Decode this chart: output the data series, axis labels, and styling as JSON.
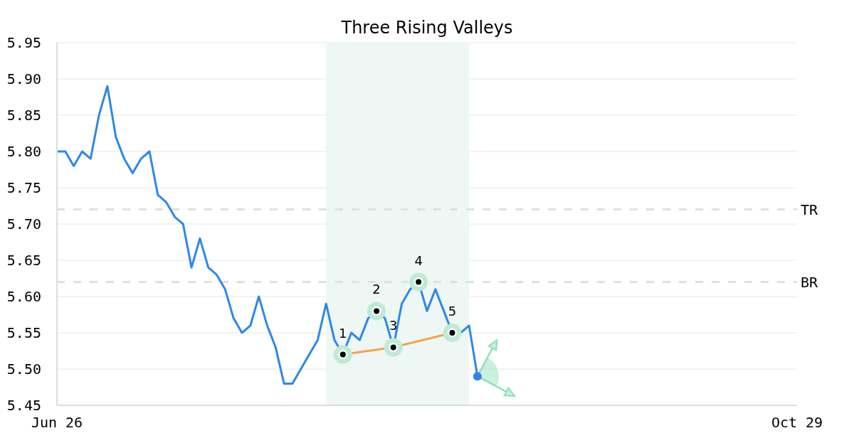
{
  "chart_data": {
    "type": "line",
    "title": "Three Rising Valleys",
    "categories": [
      "Jun 26",
      null,
      null,
      null,
      null,
      null,
      null,
      null,
      null,
      null,
      null,
      null,
      null,
      null,
      null,
      null,
      null,
      null,
      null,
      null,
      null,
      null,
      null,
      null,
      null,
      null,
      null,
      null,
      null,
      null,
      null,
      null,
      null,
      null,
      null,
      null,
      null,
      null,
      null,
      null,
      null,
      null,
      null,
      null,
      null,
      null,
      null,
      null,
      null,
      null,
      null,
      null,
      null,
      null,
      null,
      null,
      null,
      null,
      null,
      null,
      null,
      null,
      null,
      null,
      null,
      null,
      null,
      null,
      null,
      null,
      null,
      null,
      null,
      null,
      null,
      null,
      null,
      null,
      null,
      null,
      null,
      null,
      null,
      null,
      null,
      null,
      null,
      null,
      "Oct 29"
    ],
    "series": [
      {
        "color": "#2d87e8",
        "values": [
          5.8,
          5.8,
          5.78,
          5.8,
          5.79,
          5.85,
          5.89,
          5.82,
          5.79,
          5.77,
          5.79,
          5.8,
          5.74,
          5.73,
          5.71,
          5.7,
          5.64,
          5.68,
          5.64,
          5.63,
          5.61,
          5.57,
          5.55,
          5.56,
          5.6,
          5.56,
          5.53,
          5.48,
          5.48,
          5.5,
          5.52,
          5.54,
          5.59,
          5.54,
          5.52,
          5.55,
          5.54,
          5.57,
          5.58,
          5.57,
          5.53,
          5.59,
          5.61,
          5.62,
          5.58,
          5.61,
          5.58,
          5.55,
          5.55,
          5.56,
          5.49,
          null,
          null,
          null,
          null,
          null,
          null,
          null,
          null,
          null,
          null,
          null,
          null,
          null,
          null,
          null,
          null,
          null,
          null,
          null,
          null,
          null,
          null,
          null,
          null,
          null,
          null,
          null,
          null,
          null,
          null,
          null,
          null,
          null,
          null,
          null,
          null,
          null,
          null
        ]
      },
      {
        "color": "#f5a04b",
        "marker": "circle",
        "values": [
          null,
          null,
          null,
          null,
          null,
          null,
          null,
          null,
          null,
          null,
          null,
          null,
          null,
          null,
          null,
          null,
          null,
          null,
          null,
          null,
          null,
          null,
          null,
          null,
          null,
          null,
          null,
          null,
          null,
          null,
          null,
          null,
          null,
          null,
          5.52,
          null,
          null,
          null,
          null,
          null,
          5.53,
          null,
          null,
          null,
          null,
          null,
          null,
          5.55,
          null,
          null,
          null,
          null,
          null,
          null,
          null,
          null,
          null,
          null,
          null,
          null,
          null,
          null,
          null,
          null,
          null,
          null,
          null,
          null,
          null,
          null,
          null,
          null,
          null,
          null,
          null,
          null,
          null,
          null,
          null,
          null,
          null,
          null,
          null,
          null,
          null,
          null,
          null,
          null,
          null
        ]
      },
      {
        "type": "scatter",
        "color": "#bfead6",
        "marker": "circle",
        "values": [
          null,
          null,
          null,
          null,
          null,
          null,
          null,
          null,
          null,
          null,
          null,
          null,
          null,
          null,
          null,
          null,
          null,
          null,
          null,
          null,
          null,
          null,
          null,
          null,
          null,
          null,
          null,
          null,
          null,
          null,
          null,
          null,
          null,
          null,
          null,
          null,
          null,
          null,
          5.58,
          null,
          null,
          null,
          null,
          5.62,
          null,
          null,
          null,
          null,
          null,
          null,
          null,
          null,
          null,
          null,
          null,
          null,
          null,
          null,
          null,
          null,
          null,
          null,
          null,
          null,
          null,
          null,
          null,
          null,
          null,
          null,
          null,
          null,
          null,
          null,
          null,
          null,
          null,
          null,
          null,
          null,
          null,
          null,
          null,
          null,
          null,
          null,
          null,
          null,
          null
        ]
      }
    ],
    "ylim": [
      5.45,
      5.95
    ],
    "yticks": [
      5.45,
      {
        "value": 5.5,
        "label": "5.50"
      },
      5.55,
      {
        "value": 5.6,
        "label": "5.60"
      },
      5.65,
      {
        "value": 5.7,
        "label": "5.70"
      },
      5.75,
      {
        "value": 5.8,
        "label": "5.80"
      },
      5.85,
      {
        "value": 5.9,
        "label": "5.90"
      },
      5.95
    ],
    "grid": "y",
    "ref_lines": [
      {
        "axis": "y",
        "value": 5.72,
        "label": "TR",
        "color": "#e0e0e0",
        "line_style": "dashed"
      },
      {
        "axis": "y",
        "value": 5.62,
        "label": "BR",
        "color": "#e0e0e0",
        "line_style": "dashed"
      }
    ],
    "annotations": [
      {
        "text": "1",
        "y": 5.52
      },
      {
        "text": "2",
        "y": 5.58
      },
      {
        "text": "3",
        "y": 5.53
      },
      {
        "text": "4",
        "y": 5.62
      },
      {
        "text": "5",
        "y": 5.55
      }
    ]
  }
}
